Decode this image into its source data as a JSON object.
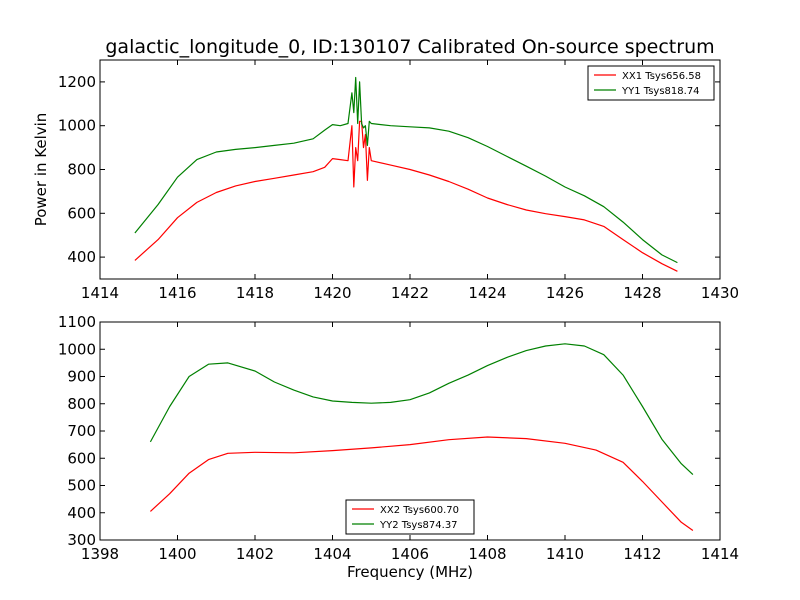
{
  "figure_title": "galactic_longitude_0, ID:130107 Calibrated On-source spectrum",
  "colors": {
    "red": "#ff0000",
    "green": "#008000"
  },
  "chart_data": [
    {
      "type": "line",
      "title": "galactic_longitude_0, ID:130107 Calibrated On-source spectrum",
      "xlabel": "",
      "ylabel": "Power in Kelvin",
      "xlim": [
        1414,
        1430
      ],
      "ylim": [
        300,
        1300
      ],
      "xticks": [
        1414,
        1416,
        1418,
        1420,
        1422,
        1424,
        1426,
        1428,
        1430
      ],
      "yticks": [
        400,
        600,
        800,
        1000,
        1200
      ],
      "grid": false,
      "legend_position": "top-right",
      "series": [
        {
          "name": "XX1 Tsys656.58",
          "color": "#ff0000",
          "x": [
            1414.9,
            1415.5,
            1416.0,
            1416.5,
            1417.0,
            1417.5,
            1418.0,
            1418.5,
            1419.0,
            1419.5,
            1419.8,
            1420.0,
            1420.2,
            1420.4,
            1420.5,
            1420.55,
            1420.6,
            1420.65,
            1420.7,
            1420.75,
            1420.8,
            1420.85,
            1420.9,
            1420.95,
            1421.0,
            1421.5,
            1422.0,
            1422.5,
            1423.0,
            1423.5,
            1424.0,
            1424.5,
            1425.0,
            1425.5,
            1426.0,
            1426.5,
            1427.0,
            1427.5,
            1428.0,
            1428.5,
            1428.9
          ],
          "y": [
            385,
            480,
            580,
            650,
            695,
            725,
            745,
            760,
            775,
            790,
            810,
            850,
            845,
            840,
            1000,
            720,
            900,
            840,
            1020,
            1020,
            900,
            960,
            750,
            900,
            840,
            820,
            800,
            775,
            745,
            710,
            670,
            640,
            615,
            598,
            585,
            570,
            540,
            480,
            420,
            370,
            335
          ]
        },
        {
          "name": "YY1 Tsys818.74",
          "color": "#008000",
          "x": [
            1414.9,
            1415.5,
            1416.0,
            1416.5,
            1417.0,
            1417.5,
            1418.0,
            1418.5,
            1419.0,
            1419.5,
            1419.8,
            1420.0,
            1420.2,
            1420.4,
            1420.5,
            1420.55,
            1420.6,
            1420.65,
            1420.7,
            1420.75,
            1420.8,
            1420.85,
            1420.9,
            1420.95,
            1421.0,
            1421.5,
            1422.0,
            1422.5,
            1423.0,
            1423.5,
            1424.0,
            1424.5,
            1425.0,
            1425.5,
            1426.0,
            1426.5,
            1427.0,
            1427.5,
            1428.0,
            1428.5,
            1428.9
          ],
          "y": [
            510,
            640,
            765,
            845,
            880,
            892,
            900,
            910,
            920,
            940,
            980,
            1005,
            1000,
            1010,
            1150,
            1060,
            1220,
            1010,
            1200,
            1010,
            990,
            1000,
            910,
            1020,
            1010,
            1000,
            995,
            990,
            975,
            945,
            905,
            860,
            815,
            770,
            720,
            680,
            630,
            560,
            480,
            410,
            375
          ]
        }
      ]
    },
    {
      "type": "line",
      "title": "",
      "xlabel": "Frequency (MHz)",
      "ylabel": "",
      "xlim": [
        1398,
        1414
      ],
      "ylim": [
        300,
        1100
      ],
      "xticks": [
        1398,
        1400,
        1402,
        1404,
        1406,
        1408,
        1410,
        1412,
        1414
      ],
      "yticks": [
        300,
        400,
        500,
        600,
        700,
        800,
        900,
        1000,
        1100
      ],
      "grid": false,
      "legend_position": "bottom-center",
      "series": [
        {
          "name": "XX2 Tsys600.70",
          "color": "#ff0000",
          "x": [
            1399.3,
            1399.8,
            1400.3,
            1400.8,
            1401.3,
            1402.0,
            1403.0,
            1404.0,
            1405.0,
            1406.0,
            1407.0,
            1408.0,
            1409.0,
            1410.0,
            1410.8,
            1411.5,
            1412.0,
            1412.5,
            1413.0,
            1413.3
          ],
          "y": [
            405,
            470,
            545,
            595,
            618,
            622,
            620,
            628,
            638,
            650,
            668,
            678,
            672,
            655,
            630,
            585,
            515,
            440,
            365,
            335
          ]
        },
        {
          "name": "YY2 Tsys874.37",
          "color": "#008000",
          "x": [
            1399.3,
            1399.8,
            1400.3,
            1400.8,
            1401.3,
            1402.0,
            1402.5,
            1403.0,
            1403.5,
            1404.0,
            1404.5,
            1405.0,
            1405.5,
            1406.0,
            1406.5,
            1407.0,
            1407.5,
            1408.0,
            1408.5,
            1409.0,
            1409.5,
            1410.0,
            1410.5,
            1411.0,
            1411.5,
            1412.0,
            1412.5,
            1413.0,
            1413.3
          ],
          "y": [
            660,
            790,
            900,
            945,
            950,
            920,
            880,
            850,
            825,
            810,
            805,
            802,
            805,
            815,
            840,
            875,
            905,
            940,
            970,
            995,
            1012,
            1020,
            1012,
            980,
            905,
            790,
            670,
            580,
            540
          ]
        }
      ]
    }
  ]
}
